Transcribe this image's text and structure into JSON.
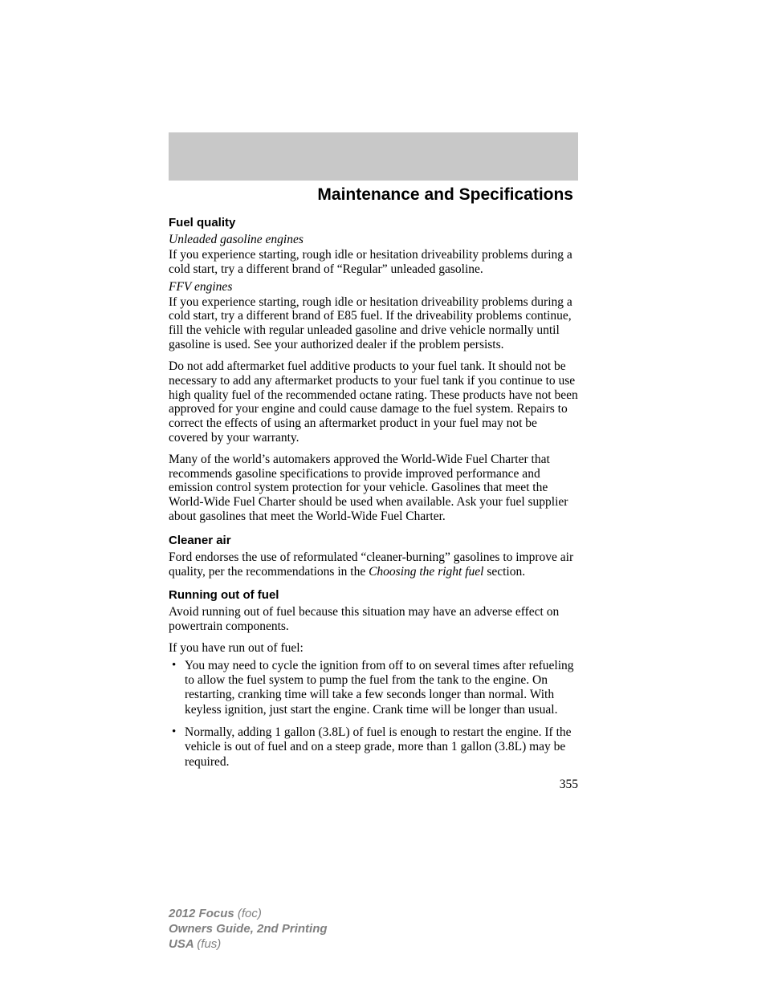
{
  "chapter_title": "Maintenance and Specifications",
  "sec1": {
    "head": "Fuel quality",
    "sub1": "Unleaded gasoline engines",
    "p1": "If you experience starting, rough idle or hesitation driveability problems during a cold start, try a different brand of “Regular” unleaded gasoline.",
    "sub2": "FFV engines",
    "p2": "If you experience starting, rough idle or hesitation driveability problems during a cold start, try a different brand of E85 fuel. If the driveability problems continue, fill the vehicle with regular unleaded gasoline and drive vehicle normally until gasoline is used. See your authorized dealer if the problem persists.",
    "p3": "Do not add aftermarket fuel additive products to your fuel tank. It should not be necessary to add any aftermarket products to your fuel tank if you continue to use high quality fuel of the recommended octane rating. These products have not been approved for your engine and could cause damage to the fuel system. Repairs to correct the effects of using an aftermarket product in your fuel may not be covered by your warranty.",
    "p4": "Many of the world’s automakers approved the World-Wide Fuel Charter that recommends gasoline specifications to provide improved performance and emission control system protection for your vehicle. Gasolines that meet the World-Wide Fuel Charter should be used when available. Ask your fuel supplier about gasolines that meet the World-Wide Fuel Charter."
  },
  "sec2": {
    "head": "Cleaner air",
    "p1a": "Ford endorses the use of reformulated “cleaner-burning” gasolines to improve air quality, per the recommendations in the ",
    "p1b": "Choosing the right fuel",
    "p1c": " section."
  },
  "sec3": {
    "head": "Running out of fuel",
    "p1": "Avoid running out of fuel because this situation may have an adverse effect on powertrain components.",
    "p2": "If you have run out of fuel:",
    "li1": "You may need to cycle the ignition from off to on several times after refueling to allow the fuel system to pump the fuel from the tank to the engine. On restarting, cranking time will take a few seconds longer than normal. With keyless ignition, just start the engine. Crank time will be longer than usual.",
    "li2": "Normally, adding 1 gallon (3.8L) of fuel is enough to restart the engine. If the vehicle is out of fuel and on a steep grade, more than 1 gallon (3.8L) may be required."
  },
  "page_number": "355",
  "footer": {
    "l1a": "2012 Focus ",
    "l1b": "(foc)",
    "l2": "Owners Guide, 2nd Printing",
    "l3a": "USA ",
    "l3b": "(fus)"
  }
}
